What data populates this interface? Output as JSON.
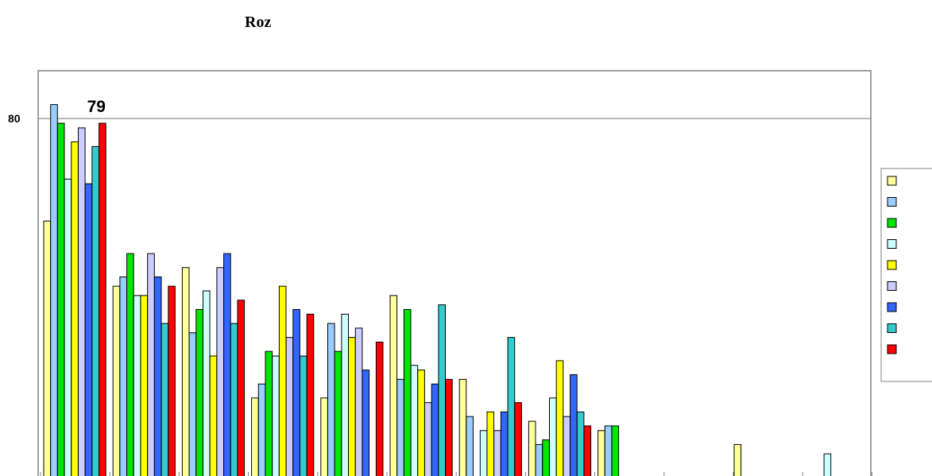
{
  "chart_data": {
    "type": "bar",
    "title": "Roz",
    "xlabel": "",
    "ylabel": "",
    "ylim": [
      0,
      90
    ],
    "y_ticks": [
      80
    ],
    "y_tick_labels": [
      "80"
    ],
    "grid": {
      "y": true,
      "x": false
    },
    "legend_placement": "right",
    "categories": [
      "",
      "",
      "",
      "",
      "",
      "",
      "",
      "",
      "",
      "",
      "",
      ""
    ],
    "series": [
      {
        "color": "#ffff99",
        "values": [
          58,
          44,
          48,
          20,
          20,
          42,
          24,
          15,
          13,
          0,
          0,
          0
        ]
      },
      {
        "color": "#99ccff",
        "values": [
          83,
          46,
          34,
          23,
          36,
          24,
          16,
          10,
          14,
          0,
          0,
          0
        ]
      },
      {
        "color": "#00e600",
        "values": [
          79,
          51,
          39,
          30,
          30,
          39,
          0,
          11,
          14,
          0,
          2,
          0
        ]
      },
      {
        "color": "#ccffff",
        "values": [
          67,
          42,
          43,
          29,
          38,
          27,
          13,
          20,
          0,
          0,
          3,
          0
        ]
      },
      {
        "color": "#ffff00",
        "values": [
          75,
          42,
          29,
          44,
          33,
          26,
          17,
          28,
          0,
          0,
          1,
          0
        ]
      },
      {
        "color": "#ccccff",
        "values": [
          78,
          51,
          48,
          33,
          35,
          19,
          13,
          16,
          0,
          0,
          3,
          0
        ]
      },
      {
        "color": "#3366ff",
        "values": [
          66,
          46,
          51,
          39,
          26,
          23,
          17,
          25,
          0,
          3,
          0,
          0
        ]
      },
      {
        "color": "#33cccc",
        "values": [
          74,
          36,
          36,
          29,
          0,
          40,
          33,
          17,
          0,
          0,
          3,
          0
        ]
      },
      {
        "color": "#ff0000",
        "values": [
          79,
          44,
          41,
          38,
          32,
          24,
          19,
          14,
          0,
          3,
          1,
          0
        ]
      }
    ],
    "extra_bars_last_group": [
      {
        "series_index": 0,
        "value": 10
      },
      {
        "series_index": 1,
        "value": 1
      },
      {
        "series_index": 7,
        "value": 1
      },
      {
        "series_index": 1,
        "value": 1
      },
      {
        "series_index": 3,
        "value": 8
      },
      {
        "series_index": 4,
        "value": 1
      }
    ],
    "data_labels": [
      {
        "series_index": 8,
        "category_index": 0,
        "text": "79"
      }
    ],
    "legend_entries": [
      "",
      "",
      "",
      "",
      "",
      "",
      "",
      "",
      ""
    ]
  }
}
